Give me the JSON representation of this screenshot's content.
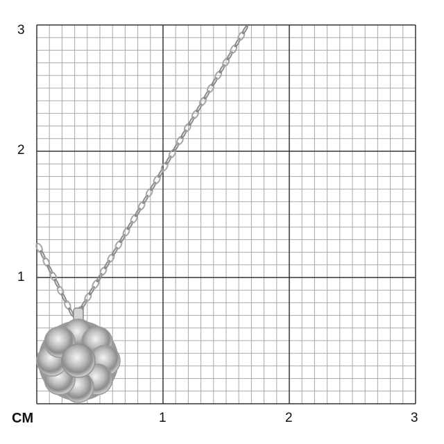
{
  "scale": {
    "unit_label": "CM",
    "x_ticks": [
      "1",
      "2",
      "3"
    ],
    "y_ticks": [
      "3",
      "2",
      "1"
    ],
    "minor_divisions_per_unit": 10,
    "range_cm": [
      0,
      3
    ]
  },
  "colors": {
    "major_grid": "#333333",
    "minor_grid": "#a8a8a8",
    "metal": "#c8c8c8"
  }
}
